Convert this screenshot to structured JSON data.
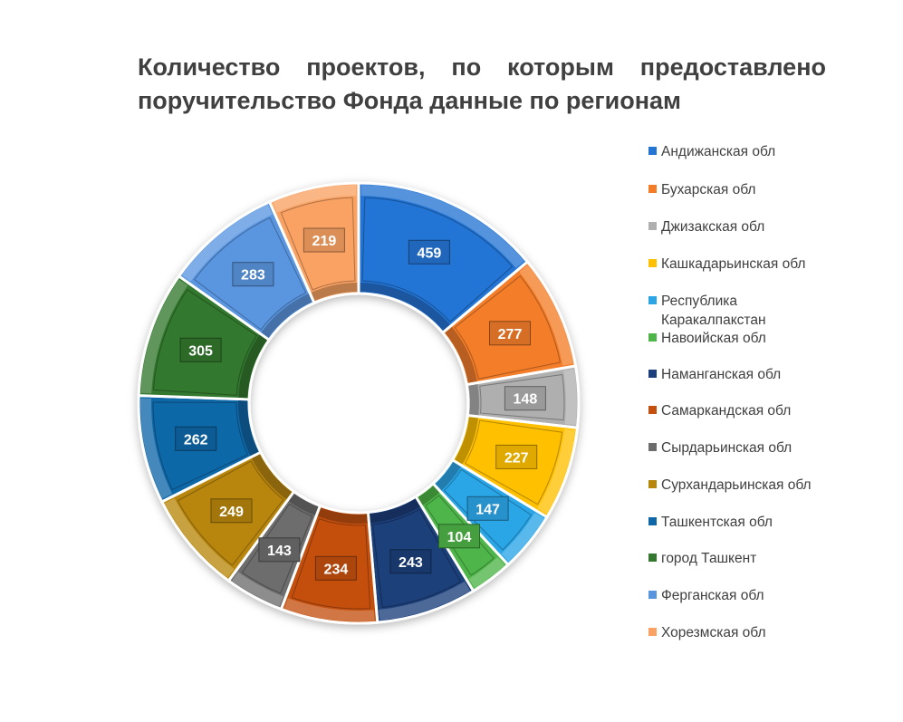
{
  "title_lines": [
    "Количество проектов, по которым предоставлено",
    "поручительство Фонда данные по регионам"
  ],
  "chart_data": {
    "type": "pie",
    "donut": true,
    "title": "Количество проектов, по которым предоставлено поручительство Фонда данные по регионам",
    "legend_position": "right",
    "categories": [
      "Андижанская обл",
      "Бухарская обл",
      "Джизакская обл",
      "Кашкадарьинская обл",
      "Республика Каракалпакстан",
      "Навоийская обл",
      "Наманганская обл",
      "Самаркандская обл",
      "Сырдарьинская обл",
      "Сурхандарьинская обл",
      "Ташкентская обл",
      "город Ташкент",
      "Ферганская обл",
      "Хорезмская обл"
    ],
    "values": [
      459,
      277,
      148,
      227,
      147,
      104,
      243,
      234,
      143,
      249,
      262,
      305,
      283,
      219
    ],
    "colors": [
      "#2474D4",
      "#F47D2A",
      "#AFAFAF",
      "#FFC000",
      "#2BA5E6",
      "#4EB548",
      "#1B3F7A",
      "#C4500F",
      "#6D6D6D",
      "#B8860B",
      "#0F67A8",
      "#33782E",
      "#5A96E0",
      "#F9A263"
    ]
  }
}
